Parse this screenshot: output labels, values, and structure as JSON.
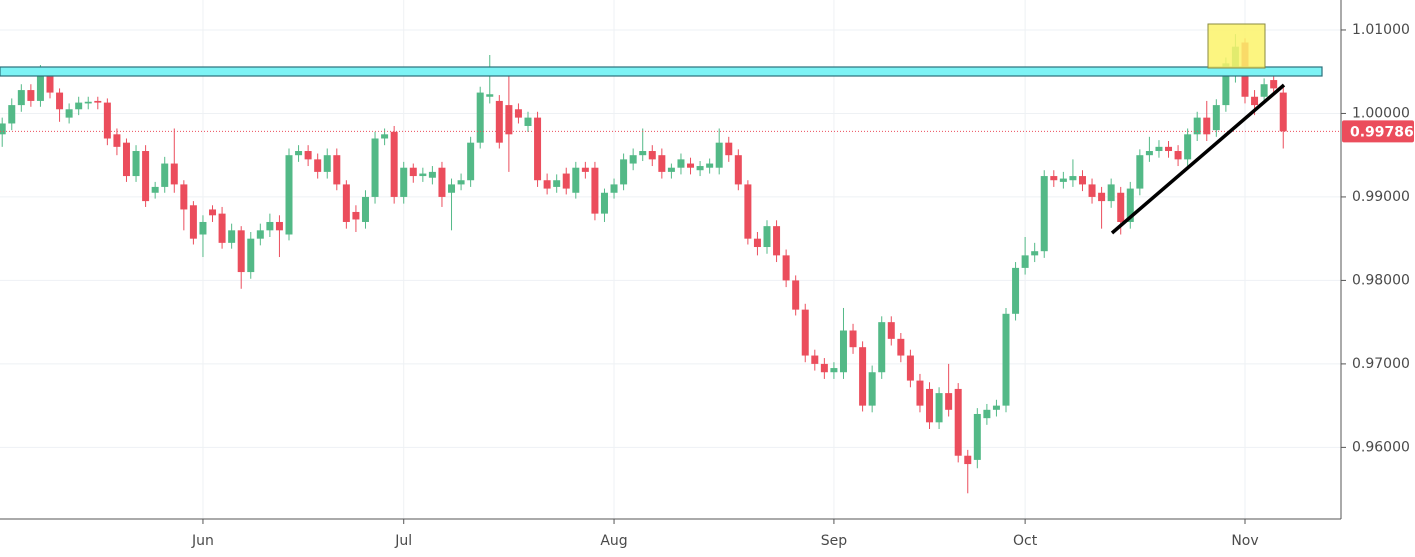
{
  "chart_data": {
    "type": "candlestick",
    "categories": [
      null,
      null,
      null,
      null,
      null,
      null,
      null,
      null,
      null,
      null,
      null,
      null,
      null,
      null,
      null,
      null,
      null,
      null,
      null,
      null,
      null,
      "Jun",
      null,
      null,
      null,
      null,
      null,
      null,
      null,
      null,
      null,
      null,
      null,
      null,
      null,
      null,
      null,
      null,
      null,
      null,
      null,
      null,
      "Jul",
      null,
      null,
      null,
      null,
      null,
      null,
      null,
      null,
      null,
      null,
      null,
      null,
      null,
      null,
      null,
      null,
      null,
      null,
      null,
      null,
      null,
      "Aug",
      null,
      null,
      null,
      null,
      null,
      null,
      null,
      null,
      null,
      null,
      null,
      null,
      null,
      null,
      null,
      null,
      null,
      null,
      null,
      null,
      null,
      null,
      "Sep",
      null,
      null,
      null,
      null,
      null,
      null,
      null,
      null,
      null,
      null,
      null,
      null,
      null,
      null,
      null,
      null,
      null,
      null,
      null,
      "Oct",
      null,
      null,
      null,
      null,
      null,
      null,
      null,
      null,
      null,
      null,
      null,
      null,
      null,
      null,
      null,
      null,
      null,
      null,
      null,
      null,
      null,
      null,
      "Nov",
      null,
      null,
      null,
      null
    ],
    "open": [
      0.9975,
      0.9988,
      1.001,
      1.0028,
      1.0015,
      1.005,
      1.0025,
      0.9995,
      1.0005,
      1.0012,
      1.0015,
      1.0013,
      0.9975,
      0.9965,
      0.9925,
      0.9955,
      0.9905,
      0.9912,
      0.994,
      0.9915,
      0.989,
      0.9855,
      0.9885,
      0.988,
      0.9845,
      0.986,
      0.981,
      0.985,
      0.986,
      0.987,
      0.9855,
      0.995,
      0.9955,
      0.9945,
      0.993,
      0.995,
      0.9915,
      0.9882,
      0.987,
      0.99,
      0.997,
      0.9978,
      0.99,
      0.9935,
      0.9925,
      0.9923,
      0.9935,
      0.9905,
      0.9915,
      0.992,
      0.9965,
      1.002,
      1.0015,
      1.001,
      1.0005,
      0.9985,
      0.9995,
      0.992,
      0.9912,
      0.9928,
      0.9905,
      0.9935,
      0.9935,
      0.988,
      0.9905,
      0.9915,
      0.994,
      0.995,
      0.9955,
      0.995,
      0.993,
      0.9935,
      0.994,
      0.9932,
      0.9935,
      0.9935,
      0.9965,
      0.995,
      0.9915,
      0.985,
      0.984,
      0.9865,
      0.983,
      0.98,
      0.9765,
      0.971,
      0.97,
      0.969,
      0.969,
      0.974,
      0.972,
      0.965,
      0.969,
      0.975,
      0.973,
      0.971,
      0.968,
      0.967,
      0.963,
      0.9665,
      0.967,
      0.959,
      0.9585,
      0.9635,
      0.9645,
      0.965,
      0.976,
      0.9815,
      0.983,
      0.9835,
      0.9925,
      0.9918,
      0.992,
      0.9925,
      0.9915,
      0.9905,
      0.9895,
      0.9905,
      0.987,
      0.991,
      0.995,
      0.9955,
      0.996,
      0.9955,
      0.9945,
      0.9975,
      0.9995,
      0.998,
      1.001,
      1.0045,
      1.0085,
      1.002,
      1.002,
      1.004,
      1.0025
    ],
    "high": [
      0.9995,
      1.0018,
      1.0035,
      1.0035,
      1.0058,
      1.0055,
      1.003,
      1.0012,
      1.002,
      1.002,
      1.002,
      1.0018,
      0.9982,
      0.997,
      0.9962,
      0.9962,
      0.9918,
      0.9948,
      0.9982,
      0.992,
      0.9895,
      0.9878,
      0.989,
      0.9888,
      0.9868,
      0.9865,
      0.9858,
      0.9868,
      0.988,
      0.9878,
      0.9958,
      0.9962,
      0.9962,
      0.9952,
      0.9958,
      0.9958,
      0.992,
      0.989,
      0.9908,
      0.9978,
      0.9982,
      0.9985,
      0.9942,
      0.994,
      0.9935,
      0.9937,
      0.9942,
      0.9922,
      0.9928,
      0.9972,
      1.0032,
      1.007,
      1.0022,
      1.0045,
      1.0012,
      1.0002,
      1.0002,
      0.9928,
      0.9927,
      0.9935,
      0.9942,
      0.9942,
      0.9942,
      0.991,
      0.9922,
      0.9952,
      0.9958,
      0.9982,
      0.9962,
      0.9958,
      0.994,
      0.9952,
      0.9947,
      0.9943,
      0.9946,
      0.9982,
      0.9972,
      0.9957,
      0.992,
      0.9858,
      0.9872,
      0.9872,
      0.9837,
      0.9806,
      0.9772,
      0.9717,
      0.9707,
      0.9702,
      0.9767,
      0.9748,
      0.9727,
      0.9698,
      0.9757,
      0.9757,
      0.9737,
      0.9717,
      0.9688,
      0.9678,
      0.9672,
      0.97,
      0.9677,
      0.9597,
      0.9647,
      0.9652,
      0.9657,
      0.9767,
      0.9822,
      0.9852,
      0.9845,
      0.9932,
      0.9932,
      0.993,
      0.9945,
      0.9932,
      0.9922,
      0.9912,
      0.9922,
      0.9912,
      0.9918,
      0.9957,
      0.9972,
      0.9968,
      0.9967,
      0.9962,
      0.9982,
      1.0002,
      1.0015,
      1.0017,
      1.0067,
      1.0095,
      1.009,
      1.0028,
      1.0042,
      1.0055,
      1.0032
    ],
    "low": [
      0.996,
      0.998,
      1.0002,
      1.0008,
      1.0008,
      1.0018,
      0.999,
      0.9988,
      0.9998,
      1.0005,
      1.0005,
      0.9962,
      0.995,
      0.9918,
      0.9918,
      0.9888,
      0.9898,
      0.9905,
      0.9905,
      0.986,
      0.9843,
      0.9828,
      0.987,
      0.9838,
      0.9838,
      0.979,
      0.9802,
      0.9842,
      0.9852,
      0.9828,
      0.9848,
      0.9942,
      0.9937,
      0.9922,
      0.9922,
      0.9908,
      0.9862,
      0.9858,
      0.9862,
      0.9892,
      0.9962,
      0.9892,
      0.9892,
      0.9917,
      0.9918,
      0.9915,
      0.9888,
      0.986,
      0.9908,
      0.9912,
      0.9958,
      1.0012,
      0.9958,
      0.993,
      0.9988,
      0.9978,
      0.9912,
      0.9903,
      0.9905,
      0.9903,
      0.9898,
      0.9922,
      0.9872,
      0.987,
      0.9898,
      0.9908,
      0.9932,
      0.9943,
      0.9937,
      0.9922,
      0.9922,
      0.9927,
      0.9927,
      0.9925,
      0.9928,
      0.9927,
      0.9942,
      0.9908,
      0.9843,
      0.983,
      0.9832,
      0.9822,
      0.9792,
      0.9758,
      0.9702,
      0.9692,
      0.9682,
      0.9682,
      0.9682,
      0.9712,
      0.9643,
      0.9642,
      0.9682,
      0.9722,
      0.9702,
      0.9672,
      0.9642,
      0.9622,
      0.9622,
      0.9637,
      0.9582,
      0.9545,
      0.9575,
      0.9627,
      0.9637,
      0.9642,
      0.9752,
      0.9807,
      0.9822,
      0.9827,
      0.9912,
      0.991,
      0.9912,
      0.9907,
      0.9892,
      0.9862,
      0.9887,
      0.9855,
      0.9862,
      0.9902,
      0.9942,
      0.9947,
      0.9947,
      0.9937,
      0.9937,
      0.9967,
      0.9967,
      0.9972,
      1.0002,
      1.0037,
      1.0012,
      0.9998,
      1.0012,
      1.0022,
      0.9958
    ],
    "close": [
      0.9988,
      1.001,
      1.0028,
      1.0015,
      1.005,
      1.0025,
      1.0005,
      1.0005,
      1.0013,
      1.0014,
      1.0013,
      0.997,
      0.996,
      0.9925,
      0.9955,
      0.9895,
      0.9912,
      0.994,
      0.9915,
      0.9885,
      0.985,
      0.987,
      0.9878,
      0.9845,
      0.986,
      0.981,
      0.985,
      0.986,
      0.987,
      0.986,
      0.995,
      0.9955,
      0.9945,
      0.993,
      0.995,
      0.9915,
      0.987,
      0.9873,
      0.99,
      0.997,
      0.9975,
      0.99,
      0.9935,
      0.9925,
      0.9928,
      0.993,
      0.99,
      0.9915,
      0.992,
      0.9965,
      1.0025,
      1.0023,
      0.9965,
      0.9975,
      0.9995,
      0.9995,
      0.992,
      0.991,
      0.992,
      0.991,
      0.9935,
      0.993,
      0.988,
      0.9905,
      0.9915,
      0.9945,
      0.995,
      0.9955,
      0.9945,
      0.993,
      0.9935,
      0.9945,
      0.9935,
      0.9937,
      0.994,
      0.9965,
      0.995,
      0.9915,
      0.985,
      0.984,
      0.9865,
      0.983,
      0.98,
      0.9765,
      0.971,
      0.97,
      0.969,
      0.9695,
      0.974,
      0.972,
      0.965,
      0.969,
      0.975,
      0.973,
      0.971,
      0.968,
      0.965,
      0.963,
      0.9665,
      0.9645,
      0.959,
      0.958,
      0.964,
      0.9645,
      0.965,
      0.976,
      0.9815,
      0.983,
      0.9835,
      0.9925,
      0.992,
      0.9922,
      0.9925,
      0.9915,
      0.99,
      0.9895,
      0.9915,
      0.987,
      0.991,
      0.995,
      0.9955,
      0.996,
      0.9955,
      0.9945,
      0.9975,
      0.9995,
      0.9975,
      1.001,
      1.006,
      1.008,
      1.002,
      1.001,
      1.0035,
      1.003,
      0.99786
    ],
    "up_color": "#53b987",
    "down_color": "#eb4d5c",
    "ylim": [
      0.95142,
      1.01359
    ],
    "yticks": [
      {
        "value": 0.96,
        "label": "0.96000"
      },
      {
        "value": 0.97,
        "label": "0.97000"
      },
      {
        "value": 0.98,
        "label": "0.98000"
      },
      {
        "value": 0.99,
        "label": "0.99000"
      },
      {
        "value": 1.0,
        "label": "1.00000"
      },
      {
        "value": 1.01,
        "label": "1.01000"
      }
    ],
    "last_price": 0.99786,
    "grid": true
  }
}
